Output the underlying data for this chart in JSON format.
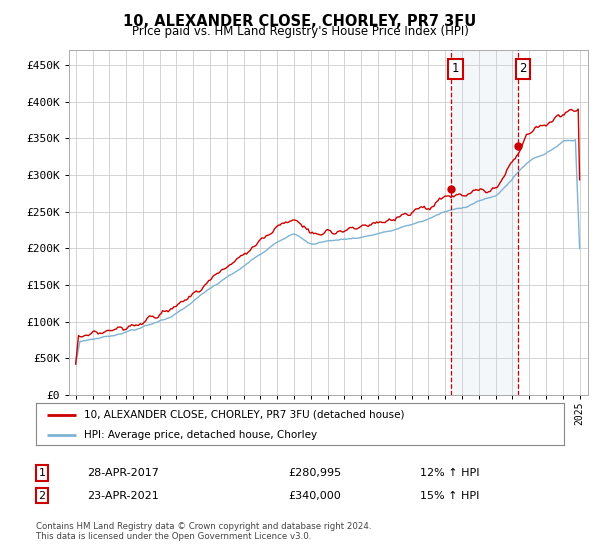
{
  "title": "10, ALEXANDER CLOSE, CHORLEY, PR7 3FU",
  "subtitle": "Price paid vs. HM Land Registry's House Price Index (HPI)",
  "ylim": [
    0,
    470000
  ],
  "yticks": [
    0,
    50000,
    100000,
    150000,
    200000,
    250000,
    300000,
    350000,
    400000,
    450000
  ],
  "ytick_labels": [
    "£0",
    "£50K",
    "£100K",
    "£150K",
    "£200K",
    "£250K",
    "£300K",
    "£350K",
    "£400K",
    "£450K"
  ],
  "hpi_color": "#7fb3d3",
  "price_color": "#cc0000",
  "m1_year": 2017.32,
  "m1_val": 280995,
  "m2_year": 2021.32,
  "m2_val": 340000,
  "legend_entry1": "10, ALEXANDER CLOSE, CHORLEY, PR7 3FU (detached house)",
  "legend_entry2": "HPI: Average price, detached house, Chorley",
  "table_row1_num": "1",
  "table_row1_date": "28-APR-2017",
  "table_row1_price": "£280,995",
  "table_row1_hpi": "12% ↑ HPI",
  "table_row2_num": "2",
  "table_row2_date": "23-APR-2021",
  "table_row2_price": "£340,000",
  "table_row2_hpi": "15% ↑ HPI",
  "footer": "Contains HM Land Registry data © Crown copyright and database right 2024.\nThis data is licensed under the Open Government Licence v3.0.",
  "background_color": "#ffffff",
  "grid_color": "#cccccc",
  "shade_color": "#dce6f1"
}
